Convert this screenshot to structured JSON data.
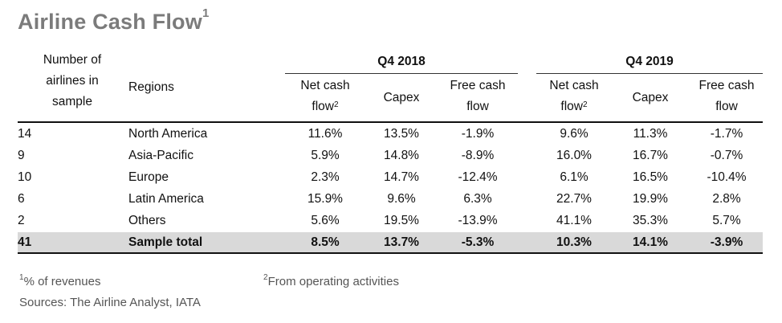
{
  "title": "Airline Cash Flow",
  "title_sup": "1",
  "header": {
    "count_col": [
      "Number of",
      "airlines in",
      "sample"
    ],
    "regions_col": "Regions",
    "groups": [
      "Q4 2018",
      "Q4 2019"
    ],
    "sub_cols": {
      "net_cash": [
        "Net cash",
        "flow"
      ],
      "net_cash_sup": "2",
      "capex": "Capex",
      "free_cash": [
        "Free cash",
        "flow"
      ]
    }
  },
  "rows": [
    {
      "count": "14",
      "region": "North America",
      "q4_2018": [
        "11.6%",
        "13.5%",
        "-1.9%"
      ],
      "q4_2019": [
        "9.6%",
        "11.3%",
        "-1.7%"
      ]
    },
    {
      "count": "9",
      "region": "Asia-Pacific",
      "q4_2018": [
        "5.9%",
        "14.8%",
        "-8.9%"
      ],
      "q4_2019": [
        "16.0%",
        "16.7%",
        "-0.7%"
      ]
    },
    {
      "count": "10",
      "region": "Europe",
      "q4_2018": [
        "2.3%",
        "14.7%",
        "-12.4%"
      ],
      "q4_2019": [
        "6.1%",
        "16.5%",
        "-10.4%"
      ]
    },
    {
      "count": "6",
      "region": "Latin America",
      "q4_2018": [
        "15.9%",
        "9.6%",
        "6.3%"
      ],
      "q4_2019": [
        "22.7%",
        "19.9%",
        "2.8%"
      ]
    },
    {
      "count": "2",
      "region": "Others",
      "q4_2018": [
        "5.6%",
        "19.5%",
        "-13.9%"
      ],
      "q4_2019": [
        "41.1%",
        "35.3%",
        "5.7%"
      ]
    }
  ],
  "total": {
    "count": "41",
    "region": "Sample total",
    "q4_2018": [
      "8.5%",
      "13.7%",
      "-5.3%"
    ],
    "q4_2019": [
      "10.3%",
      "14.1%",
      "-3.9%"
    ]
  },
  "footnotes": {
    "fn1_sup": "1",
    "fn1_text": "% of revenues",
    "fn2_sup": "2",
    "fn2_text": "From operating activities",
    "sources": "Sources: The Airline Analyst, IATA"
  }
}
